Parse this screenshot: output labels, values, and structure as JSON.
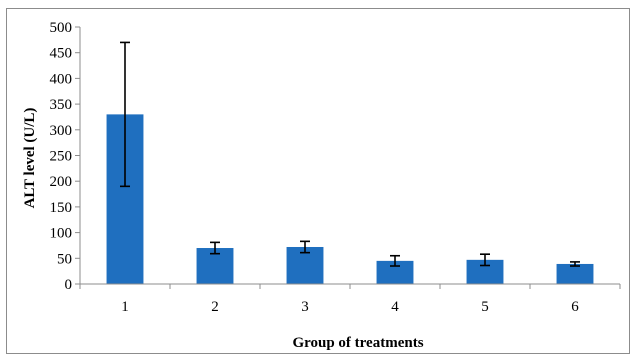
{
  "chart_data": {
    "type": "bar",
    "categories": [
      "1",
      "2",
      "3",
      "4",
      "5",
      "6"
    ],
    "values": [
      330,
      70,
      72,
      45,
      47,
      39
    ],
    "error": [
      140,
      11,
      11,
      10,
      11,
      4
    ],
    "xlabel": "Group of treatments",
    "ylabel": "ALT level (U/L)",
    "ylim": [
      0,
      500
    ],
    "yticks": [
      "0",
      "50",
      "100",
      "150",
      "200",
      "250",
      "300",
      "350",
      "400",
      "450",
      "500"
    ],
    "grid": false,
    "bar_color": "#1f6fbf"
  }
}
